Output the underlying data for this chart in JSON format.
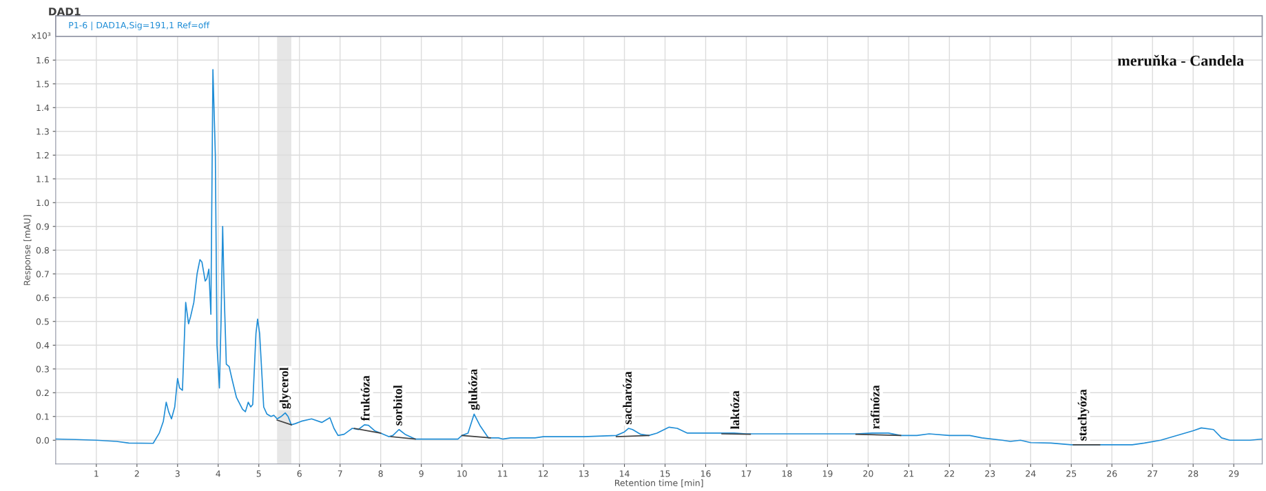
{
  "chart_data": {
    "type": "line",
    "title": "DAD1",
    "subtitle": "P1-6 | DAD1A,Sig=191,1 Ref=off",
    "xlabel": "Retention time [min]",
    "ylabel": "Response [mAU]",
    "xlim": [
      0,
      29.7
    ],
    "ylim": [
      -0.1,
      1.7
    ],
    "xticks": [
      1,
      2,
      3,
      4,
      5,
      6,
      7,
      8,
      9,
      10,
      11,
      12,
      13,
      14,
      15,
      16,
      17,
      18,
      19,
      20,
      21,
      22,
      23,
      24,
      25,
      26,
      27,
      28,
      29
    ],
    "yticks": [
      {
        "value": 0,
        "label": "0.0"
      },
      {
        "value": 0.1,
        "label": "0.1"
      },
      {
        "value": 0.2,
        "label": "0.2"
      },
      {
        "value": 0.3,
        "label": "0.3"
      },
      {
        "value": 0.4,
        "label": "0.4"
      },
      {
        "value": 0.5,
        "label": "0.5"
      },
      {
        "value": 0.6,
        "label": "0.6"
      },
      {
        "value": 0.7,
        "label": "0.7"
      },
      {
        "value": 0.8,
        "label": "0.8"
      },
      {
        "value": 0.9,
        "label": "0.9"
      },
      {
        "value": 1.0,
        "label": "1.0"
      },
      {
        "value": 1.1,
        "label": "1.1"
      },
      {
        "value": 1.2,
        "label": "1.2"
      },
      {
        "value": 1.3,
        "label": "1.3"
      },
      {
        "value": 1.4,
        "label": "1.4"
      },
      {
        "value": 1.5,
        "label": "1.5"
      },
      {
        "value": 1.6,
        "label": "1.6"
      }
    ],
    "grid": true,
    "legend": false,
    "marker": "none",
    "line_style": "solid",
    "bands": [
      {
        "axis": "x",
        "from": 5.45,
        "to": 5.8,
        "color": "#e6e6e6"
      }
    ],
    "series": [
      {
        "color": "#1f8dd6",
        "x": [
          0,
          0.5,
          1.0,
          1.5,
          1.8,
          2.4,
          2.55,
          2.65,
          2.72,
          2.78,
          2.85,
          2.93,
          3.0,
          3.05,
          3.12,
          3.2,
          3.27,
          3.32,
          3.4,
          3.48,
          3.55,
          3.6,
          3.68,
          3.72,
          3.77,
          3.82,
          3.87,
          3.93,
          3.97,
          4.03,
          4.07,
          4.11,
          4.15,
          4.2,
          4.27,
          4.35,
          4.45,
          4.6,
          4.67,
          4.74,
          4.8,
          4.85,
          4.93,
          4.97,
          5.02,
          5.12,
          5.2,
          5.3,
          5.37,
          5.45,
          5.55,
          5.65,
          5.72,
          5.8,
          5.9,
          6.05,
          6.3,
          6.55,
          6.75,
          6.85,
          6.95,
          7.1,
          7.3,
          7.45,
          7.6,
          7.7,
          7.85,
          8.0,
          8.2,
          8.3,
          8.45,
          8.6,
          8.85,
          9.2,
          9.9,
          10.0,
          10.15,
          10.3,
          10.45,
          10.65,
          10.9,
          11.0,
          11.2,
          11.8,
          12.0,
          13.0,
          13.8,
          14.0,
          14.1,
          14.2,
          14.4,
          14.6,
          14.8,
          15.1,
          15.3,
          15.55,
          16.0,
          16.7,
          17.0,
          19.7,
          20.1,
          20.5,
          20.8,
          21.2,
          21.5,
          22.0,
          22.5,
          22.8,
          23.3,
          23.5,
          23.75,
          24.0,
          24.5,
          25.0,
          26.5,
          26.8,
          27.2,
          28.0,
          28.2,
          28.5,
          28.7,
          28.9,
          29.4,
          29.7
        ],
        "values": [
          0.005,
          0.003,
          0.0,
          -0.005,
          -0.012,
          -0.013,
          0.03,
          0.08,
          0.16,
          0.12,
          0.09,
          0.14,
          0.26,
          0.22,
          0.21,
          0.58,
          0.49,
          0.52,
          0.58,
          0.7,
          0.76,
          0.75,
          0.67,
          0.68,
          0.72,
          0.53,
          1.56,
          1.2,
          0.4,
          0.22,
          0.5,
          0.9,
          0.6,
          0.32,
          0.31,
          0.25,
          0.18,
          0.13,
          0.12,
          0.16,
          0.14,
          0.15,
          0.45,
          0.51,
          0.45,
          0.14,
          0.11,
          0.1,
          0.105,
          0.09,
          0.1,
          0.115,
          0.1,
          0.065,
          0.07,
          0.08,
          0.09,
          0.075,
          0.095,
          0.05,
          0.02,
          0.025,
          0.05,
          0.045,
          0.065,
          0.063,
          0.04,
          0.03,
          0.015,
          0.02,
          0.045,
          0.025,
          0.005,
          0.005,
          0.005,
          0.02,
          0.03,
          0.11,
          0.06,
          0.01,
          0.01,
          0.005,
          0.01,
          0.01,
          0.015,
          0.015,
          0.02,
          0.035,
          0.05,
          0.045,
          0.025,
          0.02,
          0.03,
          0.055,
          0.05,
          0.03,
          0.03,
          0.03,
          0.027,
          0.027,
          0.03,
          0.03,
          0.02,
          0.02,
          0.027,
          0.02,
          0.02,
          0.01,
          0.0,
          -0.005,
          0.0,
          -0.01,
          -0.012,
          -0.019,
          -0.019,
          -0.012,
          0.0,
          0.04,
          0.052,
          0.045,
          0.01,
          0.0,
          0.0,
          0.005
        ]
      },
      {
        "color": "#404040",
        "x": [
          5.45,
          5.8
        ],
        "values": [
          0.085,
          0.065
        ]
      },
      {
        "color": "#404040",
        "x": [
          7.35,
          8.0
        ],
        "values": [
          0.05,
          0.03
        ]
      },
      {
        "color": "#404040",
        "x": [
          8.25,
          8.85
        ],
        "values": [
          0.015,
          0.005
        ]
      },
      {
        "color": "#404040",
        "x": [
          10.0,
          10.7
        ],
        "values": [
          0.02,
          0.01
        ]
      },
      {
        "color": "#404040",
        "x": [
          13.8,
          14.6
        ],
        "values": [
          0.015,
          0.02
        ]
      },
      {
        "color": "#404040",
        "x": [
          16.4,
          17.1
        ],
        "values": [
          0.027,
          0.025
        ]
      },
      {
        "color": "#404040",
        "x": [
          19.7,
          20.8
        ],
        "values": [
          0.025,
          0.02
        ]
      },
      {
        "color": "#404040",
        "x": [
          25.05,
          25.7
        ],
        "values": [
          -0.019,
          -0.019
        ]
      }
    ],
    "annotations": [
      "x10³",
      "meruňka - Candela",
      {
        "text": "glycerol",
        "x": 5.65,
        "y": 0.115
      },
      {
        "text": "fruktóza",
        "x": 7.65,
        "y": 0.065
      },
      {
        "text": "sorbitol",
        "x": 8.45,
        "y": 0.045
      },
      {
        "text": "glukóza",
        "x": 10.3,
        "y": 0.11
      },
      {
        "text": "sacharóza",
        "x": 14.1,
        "y": 0.05
      },
      {
        "text": "laktóza",
        "x": 16.75,
        "y": 0.03
      },
      {
        "text": "rafinóza",
        "x": 20.2,
        "y": 0.03
      },
      {
        "text": "stachyóza",
        "x": 25.3,
        "y": -0.019
      }
    ]
  }
}
